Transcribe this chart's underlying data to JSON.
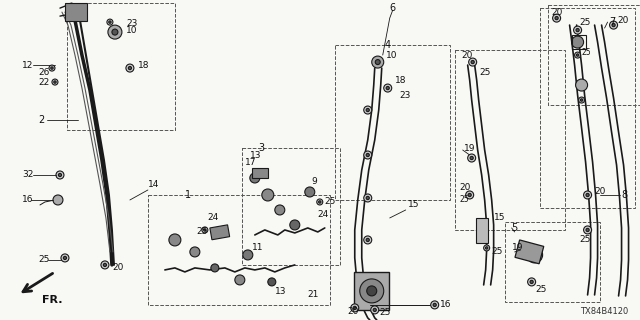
{
  "bg_color": "#f5f5f0",
  "line_color": "#1a1a1a",
  "text_color": "#111111",
  "label_fontsize": 7,
  "diagram_id": "TX84B4120",
  "fig_width": 6.4,
  "fig_height": 3.2,
  "dpi": 100
}
